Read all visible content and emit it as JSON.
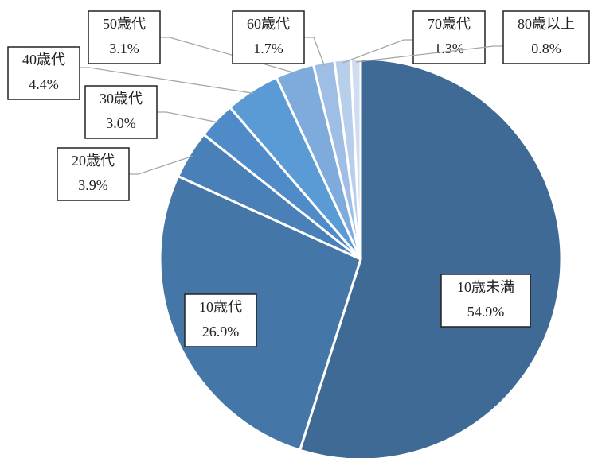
{
  "chart_data": {
    "type": "pie",
    "categories": [
      "10歳未満",
      "10歳代",
      "20歳代",
      "30歳代",
      "40歳代",
      "50歳代",
      "60歳代",
      "70歳代",
      "80歳以上"
    ],
    "values": [
      54.9,
      26.9,
      3.9,
      3.0,
      4.4,
      3.1,
      1.7,
      1.3,
      0.8
    ],
    "value_labels": [
      "54.9%",
      "26.9%",
      "3.9%",
      "3.0%",
      "4.4%",
      "3.1%",
      "1.7%",
      "1.3%",
      "0.8%"
    ],
    "colors": [
      "#3e6a95",
      "#4476a7",
      "#4a80b8",
      "#4f8bc8",
      "#5a9ad5",
      "#7eaadc",
      "#9ebee5",
      "#b8cfeb",
      "#d0ddf1"
    ]
  }
}
